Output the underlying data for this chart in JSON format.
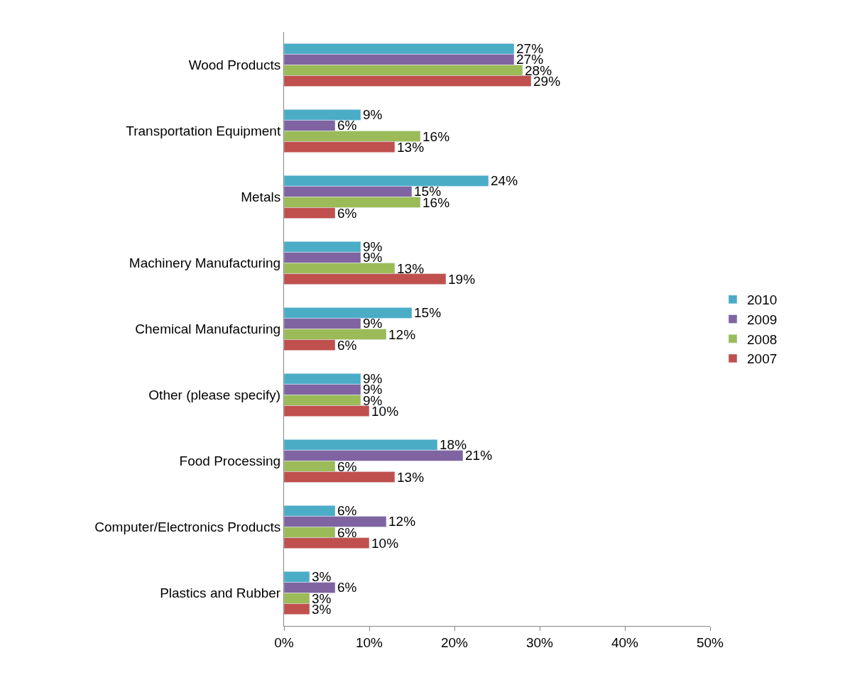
{
  "chart_data": {
    "type": "bar",
    "orientation": "horizontal",
    "categories": [
      "Wood Products",
      "Transportation Equipment",
      "Metals",
      "Machinery Manufacturing",
      "Chemical Manufacturing",
      "Other (please specify)",
      "Food Processing",
      "Computer/Electronics Products",
      "Plastics and Rubber"
    ],
    "series": [
      {
        "name": "2010",
        "color": "#4bacc6",
        "values": [
          27,
          9,
          24,
          9,
          15,
          9,
          18,
          6,
          3
        ],
        "value_labels": [
          "27%",
          "9%",
          "24%",
          "9%",
          "15%",
          "9%",
          "18%",
          "6%",
          "3%"
        ]
      },
      {
        "name": "2009",
        "color": "#8064a2",
        "values": [
          27,
          6,
          15,
          9,
          9,
          9,
          21,
          12,
          6
        ],
        "value_labels": [
          "27%",
          "6%",
          "15%",
          "9%",
          "9%",
          "9%",
          "21%",
          "12%",
          "6%"
        ]
      },
      {
        "name": "2008",
        "color": "#9bbb59",
        "values": [
          28,
          16,
          16,
          13,
          12,
          9,
          6,
          6,
          3
        ],
        "value_labels": [
          "28%",
          "16%",
          "16%",
          "13%",
          "12%",
          "9%",
          "6%",
          "6%",
          "3%"
        ]
      },
      {
        "name": "2007",
        "color": "#c0504d",
        "values": [
          29,
          13,
          6,
          19,
          6,
          10,
          13,
          10,
          3
        ],
        "value_labels": [
          "29%",
          "13%",
          "6%",
          "19%",
          "6%",
          "10%",
          "13%",
          "10%",
          "3%"
        ]
      }
    ],
    "xlim": [
      0,
      50
    ],
    "xticks": [
      {
        "value": 0,
        "label": "0%"
      },
      {
        "value": 10,
        "label": "10%"
      },
      {
        "value": 20,
        "label": "20%"
      },
      {
        "value": 30,
        "label": "30%"
      },
      {
        "value": 40,
        "label": "40%"
      },
      {
        "value": 50,
        "label": "50%"
      }
    ],
    "legend": "right"
  }
}
